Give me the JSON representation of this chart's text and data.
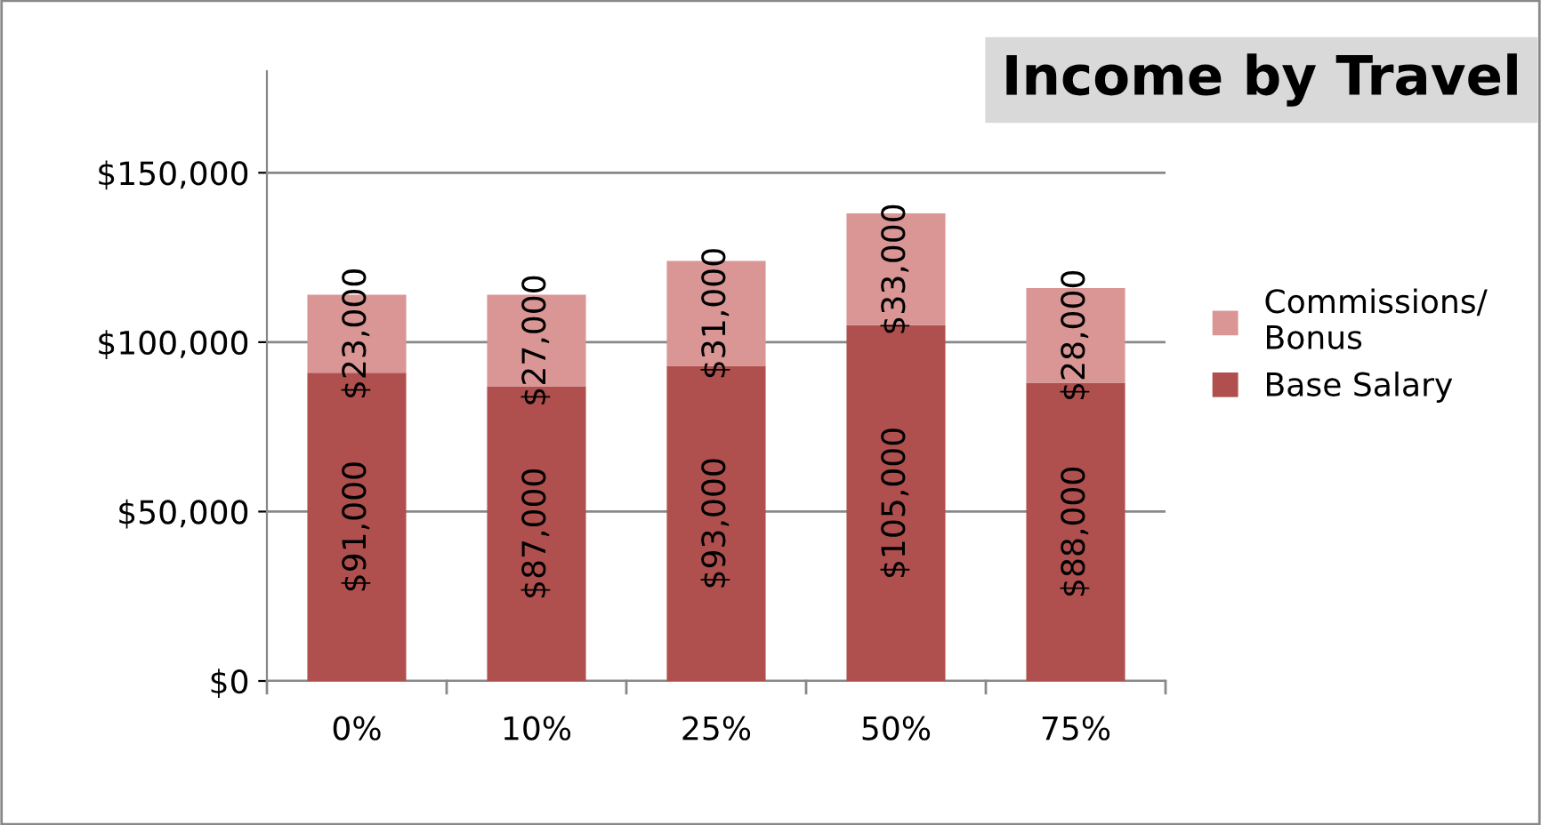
{
  "chart_data": {
    "type": "bar",
    "title": "Income by Travel",
    "categories": [
      "0%",
      "10%",
      "25%",
      "50%",
      "75%"
    ],
    "stacked": true,
    "series": [
      {
        "name": "Base Salary",
        "color": "#b0504e",
        "values": [
          91000,
          87000,
          93000,
          105000,
          88000
        ],
        "value_labels": [
          "$91,000",
          "$87,000",
          "$93,000",
          "$105,000",
          "$88,000"
        ]
      },
      {
        "name": "Commissions/\nBonus",
        "color": "#d99694",
        "values": [
          23000,
          27000,
          31000,
          33000,
          28000
        ],
        "value_labels": [
          "$23,000",
          "$27,000",
          "$31,000",
          "$33,000",
          "$28,000"
        ]
      }
    ],
    "ylim": [
      0,
      180000
    ],
    "yticks": [
      {
        "value": 0,
        "label": "$0"
      },
      {
        "value": 50000,
        "label": "$50,000"
      },
      {
        "value": 100000,
        "label": "$100,000"
      },
      {
        "value": 150000,
        "label": "$150,000"
      }
    ],
    "grid": "y",
    "legend": "right"
  }
}
